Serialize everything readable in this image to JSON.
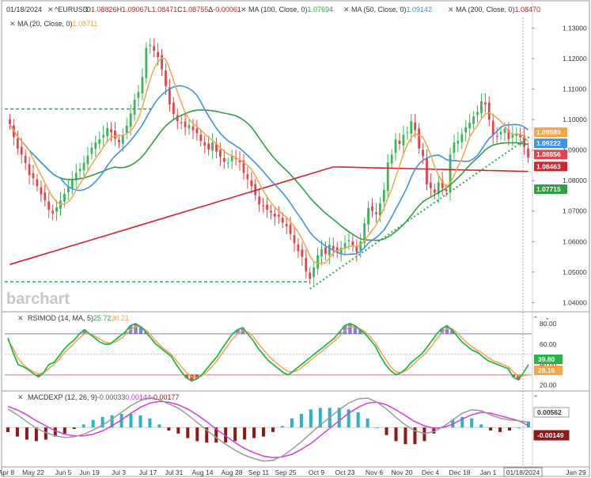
{
  "header": {
    "date": "01/18/2024",
    "symbol_legend": "^EURUSD",
    "ohlc": {
      "o_label": "O",
      "o": "1.08826",
      "h_label": "H",
      "h": "1.09067",
      "l_label": "L",
      "l": "1.08471",
      "c_label": "C",
      "c": "1.08755",
      "delta_label": "Δ",
      "delta": "-0.00061"
    },
    "ma_legends": [
      {
        "label": "MA (100, Close, 0)",
        "value": "1.07694",
        "color": "#2e9e3e"
      },
      {
        "label": "MA (50, Close, 0)",
        "value": "1.09142",
        "color": "#3b8fe0"
      },
      {
        "label": "MA (200, Close, 0)",
        "value": "1.08470",
        "color": "#c0242c"
      },
      {
        "label": "MA (20, Close, 0)",
        "value": "1.08711",
        "color": "#f0a040"
      }
    ],
    "icons": [
      "close-icon"
    ]
  },
  "watermark": "barchart",
  "rsi_panel": {
    "label": "RSIMOD (14, MA, 5)",
    "v1": "25.72",
    "v2": "30.21"
  },
  "macd_panel": {
    "label": "MACDEXP (12, 26, 9)",
    "v1": "-0.00033",
    "v2": "0.00144",
    "v3": "-0.00177"
  },
  "colors": {
    "up": "#3cb55a",
    "down": "#e0454d",
    "ma20": "#f5a447",
    "ma50": "#3e93e6",
    "ma100": "#2f9f45",
    "ma200": "#cc2630",
    "trend": "#22b14c",
    "rsi": "#28b44a",
    "rsi_signal": "#f5a447",
    "macd": "#9a9a9a",
    "macd_signal": "#d23fd3",
    "hist_pos": "#2ab3c3",
    "hist_neg": "#8b1a1a"
  },
  "chart_data": [
    {
      "type": "candlestick",
      "title": "^EURUSD",
      "x_tick_labels": [
        "Apr 8",
        "May 22",
        "Jun 5",
        "Jun 19",
        "Jul 3",
        "Jul 17",
        "Jul 31",
        "Aug 14",
        "Aug 28",
        "Sep 11",
        "Sep 25",
        "Oct 9",
        "Oct 23",
        "Nov 6",
        "Nov 20",
        "Dec 4",
        "Dec 18",
        "Jan 1",
        "01/18/2024",
        "Jan 29"
      ],
      "y_tick_labels": [
        "1.13000",
        "1.12000",
        "1.11000",
        "1.10000",
        "1.09000",
        "1.08000",
        "1.07000",
        "1.06000",
        "1.05000",
        "1.04000"
      ],
      "ylim": [
        1.0375,
        1.1335
      ],
      "close": [
        1.0985,
        1.0942,
        1.0905,
        1.0885,
        1.0858,
        1.0818,
        1.0808,
        1.0782,
        1.0755,
        1.0735,
        1.0705,
        1.0692,
        1.0712,
        1.0735,
        1.0756,
        1.0779,
        1.0805,
        1.0825,
        1.0838,
        1.0858,
        1.0882,
        1.0908,
        1.0925,
        1.0935,
        1.095,
        1.0972,
        1.0958,
        1.0938,
        1.0925,
        1.095,
        1.098,
        1.102,
        1.1065,
        1.109,
        1.114,
        1.1235,
        1.1245,
        1.1225,
        1.1205,
        1.1165,
        1.111,
        1.105,
        1.1018,
        1.0995,
        1.0988,
        1.0975,
        1.0982,
        1.0965,
        1.0955,
        1.093,
        1.0915,
        1.0902,
        1.0925,
        1.0895,
        1.0878,
        1.0862,
        1.0858,
        1.088,
        1.087,
        1.086,
        1.0825,
        1.0805,
        1.0782,
        1.0752,
        1.0722,
        1.0715,
        1.0705,
        1.0695,
        1.0682,
        1.0682,
        1.0662,
        1.065,
        1.0625,
        1.0595,
        1.0568,
        1.055,
        1.0502,
        1.0478,
        1.0515,
        1.0555,
        1.0575,
        1.056,
        1.059,
        1.0575,
        1.0565,
        1.058,
        1.0595,
        1.0605,
        1.0588,
        1.0565,
        1.06,
        1.066,
        1.071,
        1.07,
        1.069,
        1.0725,
        1.077,
        1.086,
        1.0885,
        1.0935,
        1.092,
        1.095,
        1.0958,
        1.0995,
        1.0965,
        1.0905,
        1.088,
        1.0788,
        1.0775,
        1.076,
        1.0795,
        1.0775,
        1.0765,
        1.0885,
        1.0925,
        1.093,
        1.0952,
        1.0975,
        1.099,
        1.101,
        1.1025,
        1.106,
        1.105,
        1.1,
        1.095,
        1.0945,
        1.096,
        1.097,
        1.0935,
        1.095,
        1.0955,
        1.0942,
        1.091,
        1.0875
      ]
    },
    {
      "type": "line",
      "title": "RSIMOD (14, MA, 5)",
      "y_tick_labels": [
        "80.00",
        "60.00",
        "40.00",
        "20.00"
      ],
      "ylim": [
        15,
        90
      ],
      "bands": [
        70,
        30
      ],
      "last_values": [
        "39.80",
        "28.16"
      ],
      "series": [
        {
          "name": "RSIMOD",
          "values": [
            66,
            52,
            40,
            38,
            35,
            31,
            28,
            32,
            40,
            42,
            48,
            55,
            60,
            64,
            70,
            74,
            70,
            66,
            62,
            60,
            60,
            64,
            68,
            72,
            78,
            80,
            77,
            72,
            66,
            60,
            56,
            52,
            48,
            40,
            33,
            27,
            24,
            26,
            30,
            36,
            42,
            48,
            56,
            63,
            70,
            74,
            76,
            70,
            64,
            56,
            50,
            44,
            40,
            36,
            32,
            30,
            34,
            38,
            42,
            46,
            50,
            54,
            58,
            62,
            66,
            72,
            78,
            80,
            78,
            74,
            70,
            64,
            58,
            48,
            40,
            34,
            30,
            32,
            36,
            42,
            46,
            50,
            56,
            63,
            70,
            75,
            78,
            74,
            68,
            62,
            58,
            54,
            52,
            48,
            44,
            42,
            40,
            38,
            36,
            28,
            25,
            32,
            40
          ]
        },
        {
          "name": "Signal",
          "values": [
            64,
            56,
            46,
            40,
            36,
            33,
            31,
            32,
            36,
            40,
            45,
            51,
            56,
            61,
            66,
            70,
            70,
            68,
            65,
            62,
            61,
            62,
            65,
            69,
            74,
            77,
            77,
            74,
            69,
            63,
            58,
            54,
            50,
            44,
            38,
            32,
            28,
            27,
            29,
            33,
            38,
            44,
            51,
            58,
            65,
            70,
            73,
            72,
            68,
            61,
            55,
            49,
            44,
            40,
            36,
            33,
            33,
            35,
            39,
            43,
            47,
            51,
            55,
            59,
            63,
            68,
            73,
            77,
            77,
            75,
            72,
            67,
            61,
            53,
            45,
            38,
            33,
            32,
            34,
            38,
            43,
            47,
            52,
            58,
            65,
            71,
            75,
            75,
            71,
            66,
            61,
            57,
            54,
            51,
            47,
            44,
            42,
            40,
            38,
            33,
            29,
            29,
            30
          ]
        }
      ]
    },
    {
      "type": "line",
      "title": "MACDEXP (12, 26, 9)",
      "last_values": [
        "0.00562",
        "-0.00149"
      ],
      "series": [
        {
          "name": "MACD",
          "values": [
            0.0044,
            0.003,
            0.0014,
            -0.0002,
            -0.0012,
            -0.002,
            -0.0024,
            -0.0022,
            -0.0016,
            -0.0006,
            0.0006,
            0.002,
            0.0036,
            0.0052,
            0.0064,
            0.007,
            0.0066,
            0.0056,
            0.0046,
            0.003,
            0.0012,
            -0.0006,
            -0.0024,
            -0.004,
            -0.0054,
            -0.0066,
            -0.0074,
            -0.008,
            -0.0078,
            -0.0068,
            -0.0052,
            -0.0034,
            -0.0014,
            0.0006,
            0.0024,
            0.0042,
            0.0058,
            0.0068,
            0.007,
            0.006,
            0.0044,
            0.0024,
            0.0006,
            -0.0008,
            -0.0014,
            -0.001,
            0.0002,
            0.0018,
            0.0034,
            0.0042,
            0.004,
            0.003,
            0.0022,
            0.0018,
            0.0016,
            0.0012
          ]
        },
        {
          "name": "Signal",
          "values": [
            0.005,
            0.0042,
            0.003,
            0.0016,
            0.0004,
            -0.0008,
            -0.0016,
            -0.002,
            -0.002,
            -0.0016,
            -0.0008,
            0.0004,
            0.0018,
            0.0034,
            0.0048,
            0.0058,
            0.0062,
            0.006,
            0.0054,
            0.0044,
            0.003,
            0.0014,
            -0.0004,
            -0.002,
            -0.0036,
            -0.005,
            -0.006,
            -0.0068,
            -0.0072,
            -0.007,
            -0.0064,
            -0.0052,
            -0.0038,
            -0.002,
            -0.0002,
            0.0016,
            0.0034,
            0.0048,
            0.0058,
            0.006,
            0.0054,
            0.0042,
            0.0028,
            0.0014,
            0.0004,
            -0.0002,
            0.0,
            0.0008,
            0.002,
            0.003,
            0.0036,
            0.0034,
            0.0028,
            0.0022,
            0.0016,
            0.0004
          ]
        }
      ]
    }
  ]
}
